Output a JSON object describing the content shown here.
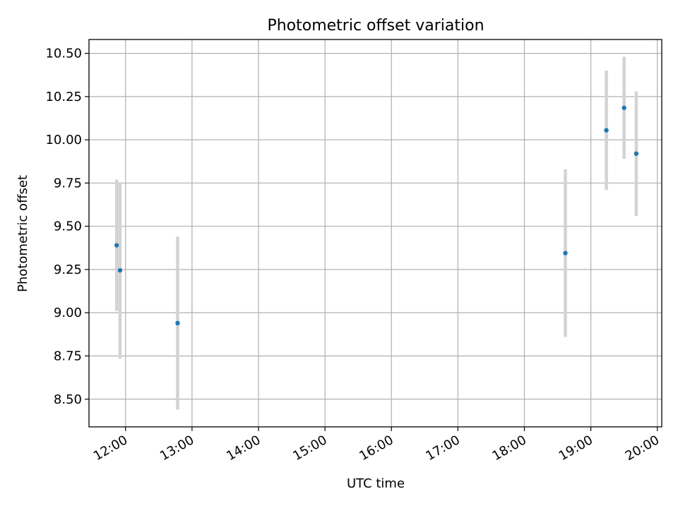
{
  "chart_data": {
    "type": "scatter",
    "title": "Photometric offset variation",
    "xlabel": "UTC time",
    "ylabel": "Photometric offset",
    "xlim": [
      "11:27",
      "20:04"
    ],
    "ylim": [
      8.34,
      10.58
    ],
    "x_ticks": [
      "12:00",
      "13:00",
      "14:00",
      "15:00",
      "16:00",
      "17:00",
      "18:00",
      "19:00",
      "20:00"
    ],
    "y_ticks": [
      "8.50",
      "8.75",
      "9.00",
      "9.25",
      "9.50",
      "9.75",
      "10.00",
      "10.25",
      "10.50"
    ],
    "grid": true,
    "marker_color": "#1f77b4",
    "errorbar_color": "#d3d3d3",
    "points": [
      {
        "x": "11:52",
        "y": 9.39,
        "yerr": 0.38
      },
      {
        "x": "11:55",
        "y": 9.245,
        "yerr": 0.51
      },
      {
        "x": "12:47",
        "y": 8.94,
        "yerr": 0.5
      },
      {
        "x": "18:37",
        "y": 9.345,
        "yerr": 0.485
      },
      {
        "x": "19:14",
        "y": 10.055,
        "yerr": 0.345
      },
      {
        "x": "19:30",
        "y": 10.185,
        "yerr": 0.295
      },
      {
        "x": "19:41",
        "y": 9.92,
        "yerr": 0.36
      }
    ]
  }
}
